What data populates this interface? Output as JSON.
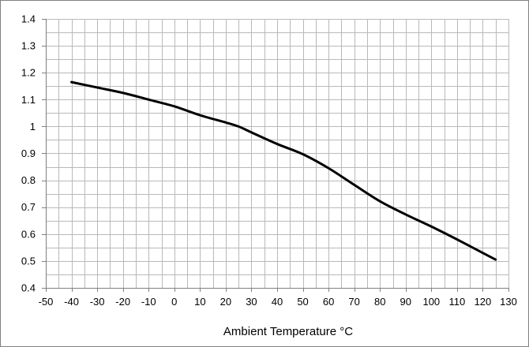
{
  "chart_data": {
    "type": "line",
    "title": "",
    "xlabel": "Ambient Temperature °C",
    "ylabel": "",
    "xlim": [
      -50,
      130
    ],
    "ylim": [
      0.4,
      1.4
    ],
    "x_ticks": [
      -50,
      -40,
      -30,
      -20,
      -10,
      0,
      10,
      20,
      30,
      40,
      50,
      60,
      70,
      80,
      90,
      100,
      110,
      120,
      130
    ],
    "y_ticks": [
      0.4,
      0.5,
      0.6,
      0.7,
      0.8,
      0.9,
      1,
      1.1,
      1.2,
      1.3,
      1.4
    ],
    "x_tick_labels": [
      "-50",
      "-40",
      "-30",
      "-20",
      "-10",
      "0",
      "10",
      "20",
      "30",
      "40",
      "50",
      "60",
      "70",
      "80",
      "90",
      "100",
      "110",
      "120",
      "130"
    ],
    "y_tick_labels": [
      "0.4",
      "0.5",
      "0.6",
      "0.7",
      "0.8",
      "0.9",
      "1",
      "1.1",
      "1.2",
      "1.3",
      "1.4"
    ],
    "x_minor_step": 5,
    "y_minor_step": 0.05,
    "grid": true,
    "legend": false,
    "series": [
      {
        "color": "#000000",
        "x": [
          -40,
          -30,
          -20,
          -10,
          0,
          10,
          20,
          25,
          30,
          40,
          50,
          60,
          70,
          80,
          90,
          100,
          110,
          120,
          125
        ],
        "y": [
          1.165,
          1.145,
          1.125,
          1.1,
          1.075,
          1.042,
          1.015,
          1.0,
          0.978,
          0.935,
          0.897,
          0.845,
          0.783,
          0.722,
          0.673,
          0.628,
          0.58,
          0.53,
          0.505
        ]
      }
    ]
  }
}
